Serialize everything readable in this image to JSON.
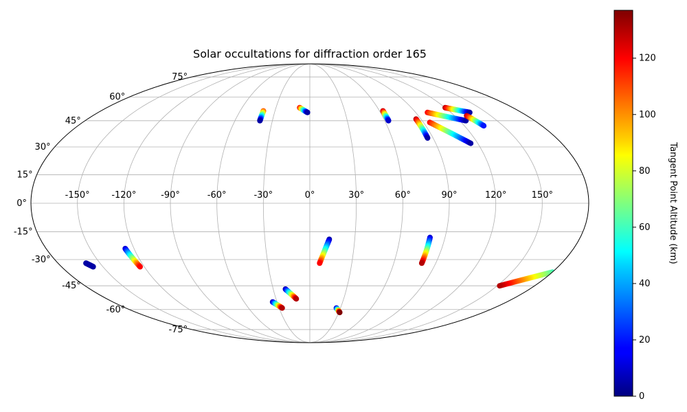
{
  "chart_data": {
    "type": "scatter",
    "projection": "mollweide",
    "title": "Solar occultations for diffraction order 165",
    "x_tick_labels": [
      "-150°",
      "-120°",
      "-90°",
      "-60°",
      "-30°",
      "0°",
      "30°",
      "60°",
      "90°",
      "120°",
      "150°"
    ],
    "x_ticks": [
      -150,
      -120,
      -90,
      -60,
      -30,
      0,
      30,
      60,
      90,
      120,
      150
    ],
    "y_tick_labels": [
      "-75°",
      "-60°",
      "-45°",
      "-30°",
      "-15°",
      "0°",
      "15°",
      "30°",
      "45°",
      "60°",
      "75°"
    ],
    "y_ticks": [
      -75,
      -60,
      -45,
      -30,
      -15,
      0,
      15,
      30,
      45,
      60,
      75
    ],
    "grid": true,
    "colorbar": {
      "label": "Tangent Point Altitude (km)",
      "colormap": "jet",
      "range": [
        0,
        137
      ],
      "tick_labels": [
        "0",
        "20",
        "40",
        "60",
        "80",
        "100",
        "120"
      ],
      "ticks": [
        0,
        20,
        40,
        60,
        80,
        100,
        120
      ]
    },
    "occultation_tracks": [
      {
        "lon_start": -40,
        "lat_start": 51,
        "lon_end": -40,
        "lat_end": 45,
        "alt_start": 110,
        "alt_end": 5
      },
      {
        "lon_start": -9,
        "lat_start": 53,
        "lon_end": -2,
        "lat_end": 50,
        "alt_start": 120,
        "alt_end": 5
      },
      {
        "lon_start": 63,
        "lat_start": 51,
        "lon_end": 63,
        "lat_end": 45,
        "alt_start": 130,
        "alt_end": 10
      },
      {
        "lon_start": 86,
        "lat_start": 46,
        "lon_end": 86,
        "lat_end": 35,
        "alt_start": 130,
        "alt_end": 5
      },
      {
        "lon_start": 100,
        "lat_start": 50,
        "lon_end": 125,
        "lat_end": 45,
        "alt_start": 120,
        "alt_end": 5
      },
      {
        "lon_start": 95,
        "lat_start": 44,
        "lon_end": 115,
        "lat_end": 32,
        "alt_start": 120,
        "alt_end": 5
      },
      {
        "lon_start": 120,
        "lat_start": 53,
        "lon_end": 136,
        "lat_end": 50,
        "alt_start": 130,
        "alt_end": 5
      },
      {
        "lon_start": 130,
        "lat_start": 48,
        "lon_end": 135,
        "lat_end": 42,
        "alt_start": 130,
        "alt_end": 20
      },
      {
        "lon_start": -160,
        "lat_start": -32,
        "lon_end": -157,
        "lat_end": -34,
        "alt_start": 5,
        "alt_end": 5
      },
      {
        "lon_start": -126,
        "lat_start": -24,
        "lon_end": -123,
        "lat_end": -34,
        "alt_start": 10,
        "alt_end": 120
      },
      {
        "lon_start": 13,
        "lat_start": -19,
        "lon_end": 7,
        "lat_end": -32,
        "alt_start": 5,
        "alt_end": 120
      },
      {
        "lon_start": 80,
        "lat_start": -18,
        "lon_end": 80,
        "lat_end": -32,
        "alt_start": 10,
        "alt_end": 130
      },
      {
        "lon_start": -20,
        "lat_start": -47,
        "lon_end": -12,
        "lat_end": -53,
        "alt_start": 5,
        "alt_end": 130
      },
      {
        "lon_start": -34,
        "lat_start": -55,
        "lon_end": -27,
        "lat_end": -59,
        "alt_start": 5,
        "alt_end": 130
      },
      {
        "lon_start": 26,
        "lat_start": -59,
        "lon_end": 31,
        "lat_end": -62,
        "alt_start": 5,
        "alt_end": 137
      },
      {
        "lon_start": 180,
        "lat_start": -37,
        "lon_end": 152,
        "lat_end": -45,
        "alt_start": 60,
        "alt_end": 130
      }
    ]
  }
}
